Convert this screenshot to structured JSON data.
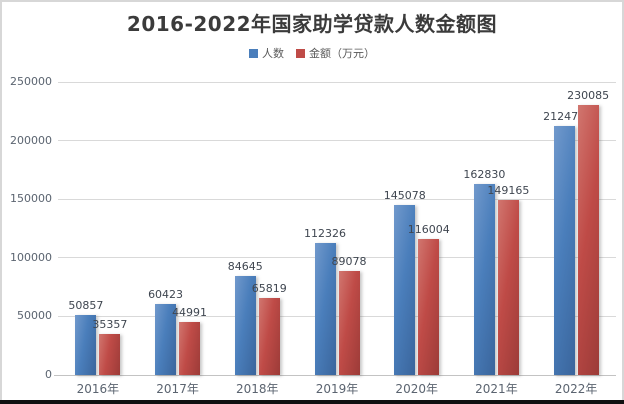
{
  "chart_data": {
    "type": "bar",
    "title": "2016-2022年国家助学贷款人数金额图",
    "categories": [
      "2016年",
      "2017年",
      "2018年",
      "2019年",
      "2020年",
      "2021年",
      "2022年"
    ],
    "series": [
      {
        "id": "people",
        "name": "人数",
        "color": "#4a7ebb",
        "color_light": "#7199cc",
        "color_dark": "#3a659c",
        "values": [
          50857,
          60423,
          84645,
          112326,
          145078,
          162830,
          212470
        ]
      },
      {
        "id": "amount",
        "name": "金额（万元）",
        "color": "#bf4b47",
        "color_light": "#d1766f",
        "color_dark": "#9c3b38",
        "values": [
          35357,
          44991,
          65819,
          89078,
          116004,
          149165,
          230085
        ]
      }
    ],
    "xlabel": "",
    "ylabel": "",
    "ylim": [
      0,
      250000
    ],
    "yticks": [
      0,
      50000,
      100000,
      150000,
      200000,
      250000
    ],
    "grid": true,
    "legend_position": "top",
    "data_labels": true
  }
}
